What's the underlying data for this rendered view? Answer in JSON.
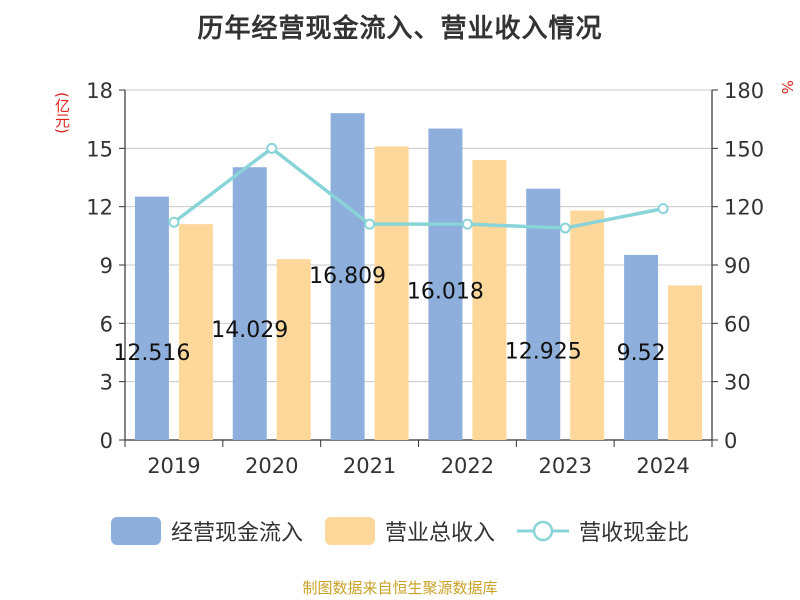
{
  "colors": {
    "bar_cash": "#8eaedb",
    "bar_revenue": "#fdd89a",
    "line_ratio": "#89d4d8",
    "axis": "#333333",
    "grid": "#c8c8c8",
    "source": "#c9a227",
    "unit": "#e0261d"
  },
  "chart_data": {
    "type": "bar",
    "title": "历年经营现金流入、营业收入情况",
    "categories": [
      "2019",
      "2020",
      "2021",
      "2022",
      "2023",
      "2024"
    ],
    "series": [
      {
        "name": "经营现金流入",
        "kind": "bar",
        "axis": "left",
        "values": [
          12.516,
          14.029,
          16.809,
          16.018,
          12.925,
          9.52
        ],
        "labels": [
          "12.516",
          "14.029",
          "16.809",
          "16.018",
          "12.925",
          "9.52"
        ]
      },
      {
        "name": "营业总收入",
        "kind": "bar",
        "axis": "left",
        "values": [
          11.1,
          9.3,
          15.1,
          14.4,
          11.8,
          7.95
        ]
      },
      {
        "name": "营收现金比",
        "kind": "line",
        "axis": "right",
        "values": [
          112,
          150,
          111,
          111,
          109,
          119
        ]
      }
    ],
    "ylabel_left": "(亿元)",
    "ylabel_right": "%",
    "ylim_left": [
      0,
      18
    ],
    "ylim_right": [
      0,
      180
    ],
    "yticks_left": [
      "0",
      "3",
      "6",
      "9",
      "12",
      "15",
      "18"
    ],
    "yticks_right": [
      "0",
      "30",
      "60",
      "90",
      "120",
      "150",
      "180"
    ],
    "grid": true,
    "legend_position": "bottom"
  },
  "source": "制图数据来自恒生聚源数据库"
}
